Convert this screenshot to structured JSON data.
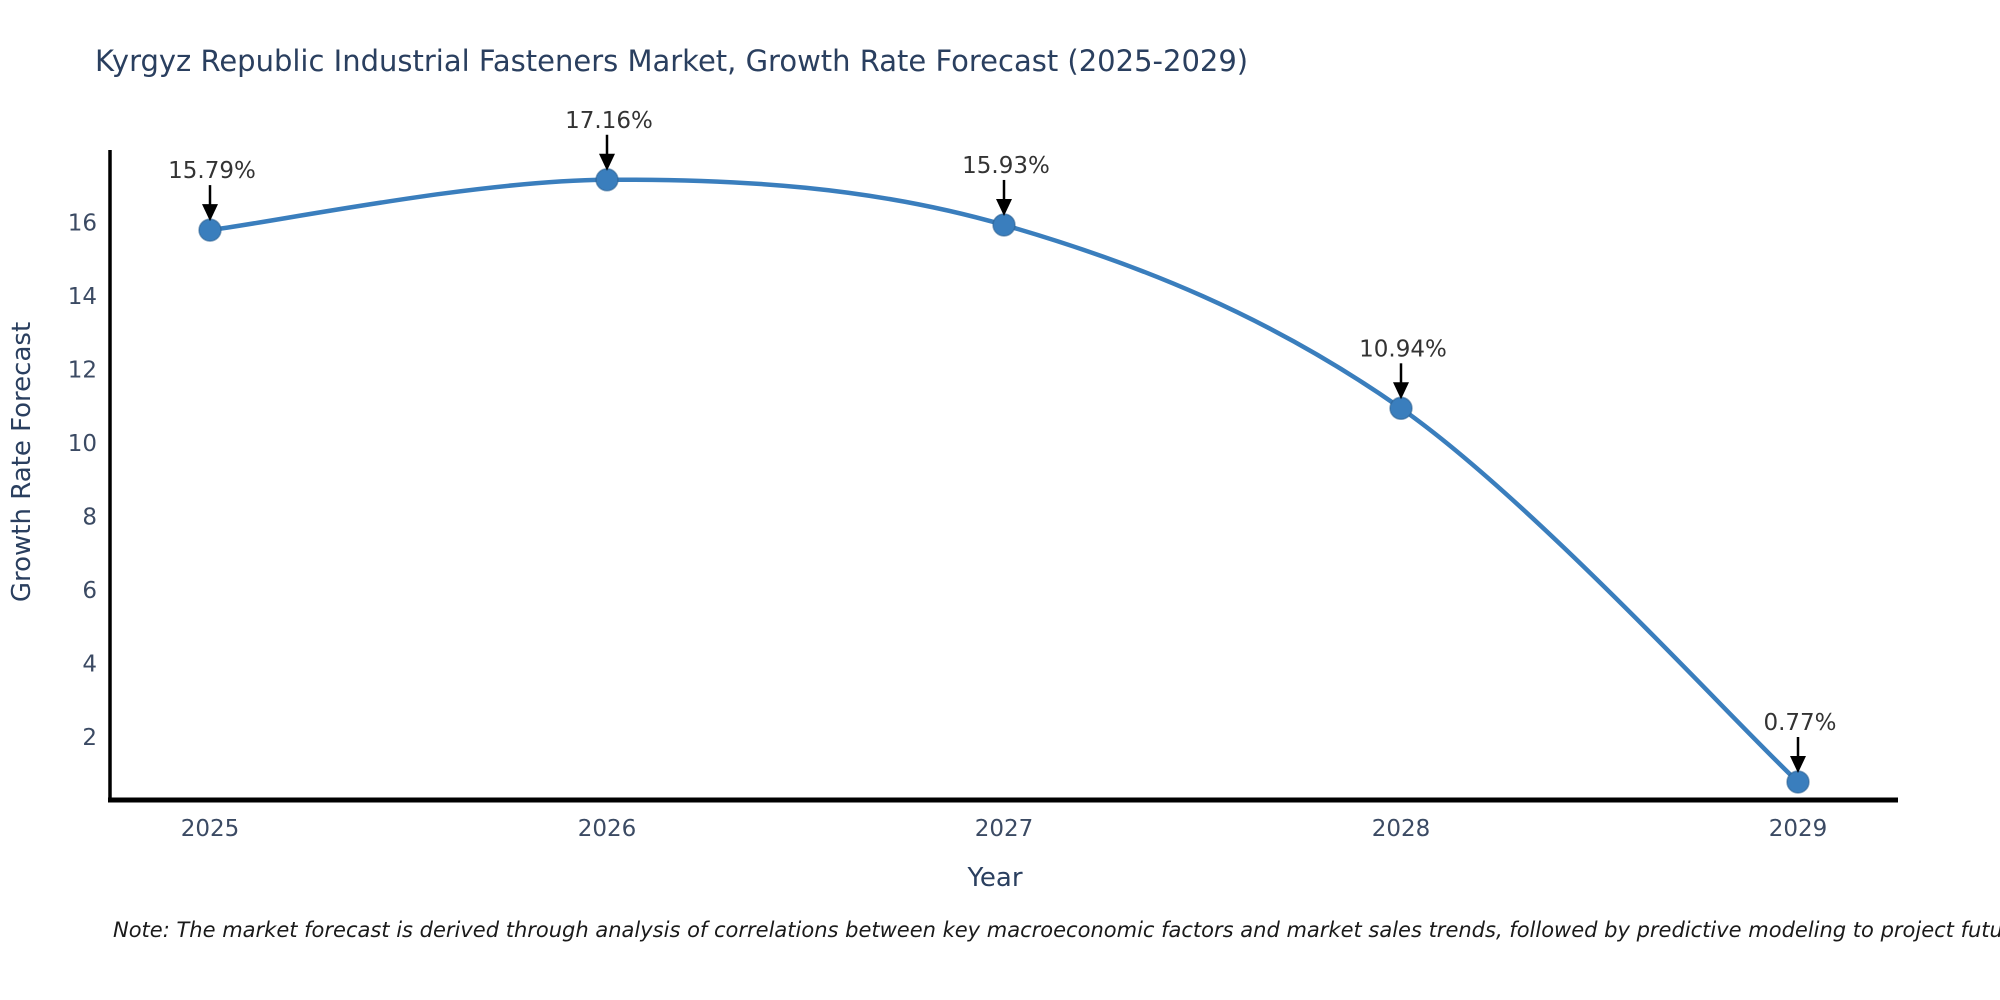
{
  "title": "Kyrgyz Republic Industrial Fasteners Market, Growth Rate Forecast (2025-2029)",
  "note": "Note: The market forecast is derived through analysis of correlations between key macroeconomic factors and market sales trends, followed by predictive modeling to project future sales",
  "chart_data": {
    "type": "line",
    "title": "Kyrgyz Republic Industrial Fasteners Market, Growth Rate Forecast (2025-2029)",
    "xlabel": "Year",
    "ylabel": "Growth Rate Forecast",
    "categories": [
      "2025",
      "2026",
      "2027",
      "2028",
      "2029"
    ],
    "values": [
      15.79,
      17.16,
      15.93,
      10.94,
      0.77
    ],
    "point_labels": [
      "15.79%",
      "17.16%",
      "15.93%",
      "10.94%",
      "0.77%"
    ],
    "y_ticks": [
      2,
      4,
      6,
      8,
      10,
      12,
      14,
      16
    ],
    "ylim": [
      0.28,
      17.97
    ],
    "grid": false,
    "legend": "none",
    "line_color": "#3a7ebd",
    "marker_color": "#3a7ebd",
    "marker_edge_color": "#2a5f8f",
    "axis_color": "#000000",
    "tick_color": "#3b4a63",
    "label_color": "#2a3f5f",
    "annotation_text_color": "#333333",
    "annotation_arrow_color": "#000000"
  }
}
